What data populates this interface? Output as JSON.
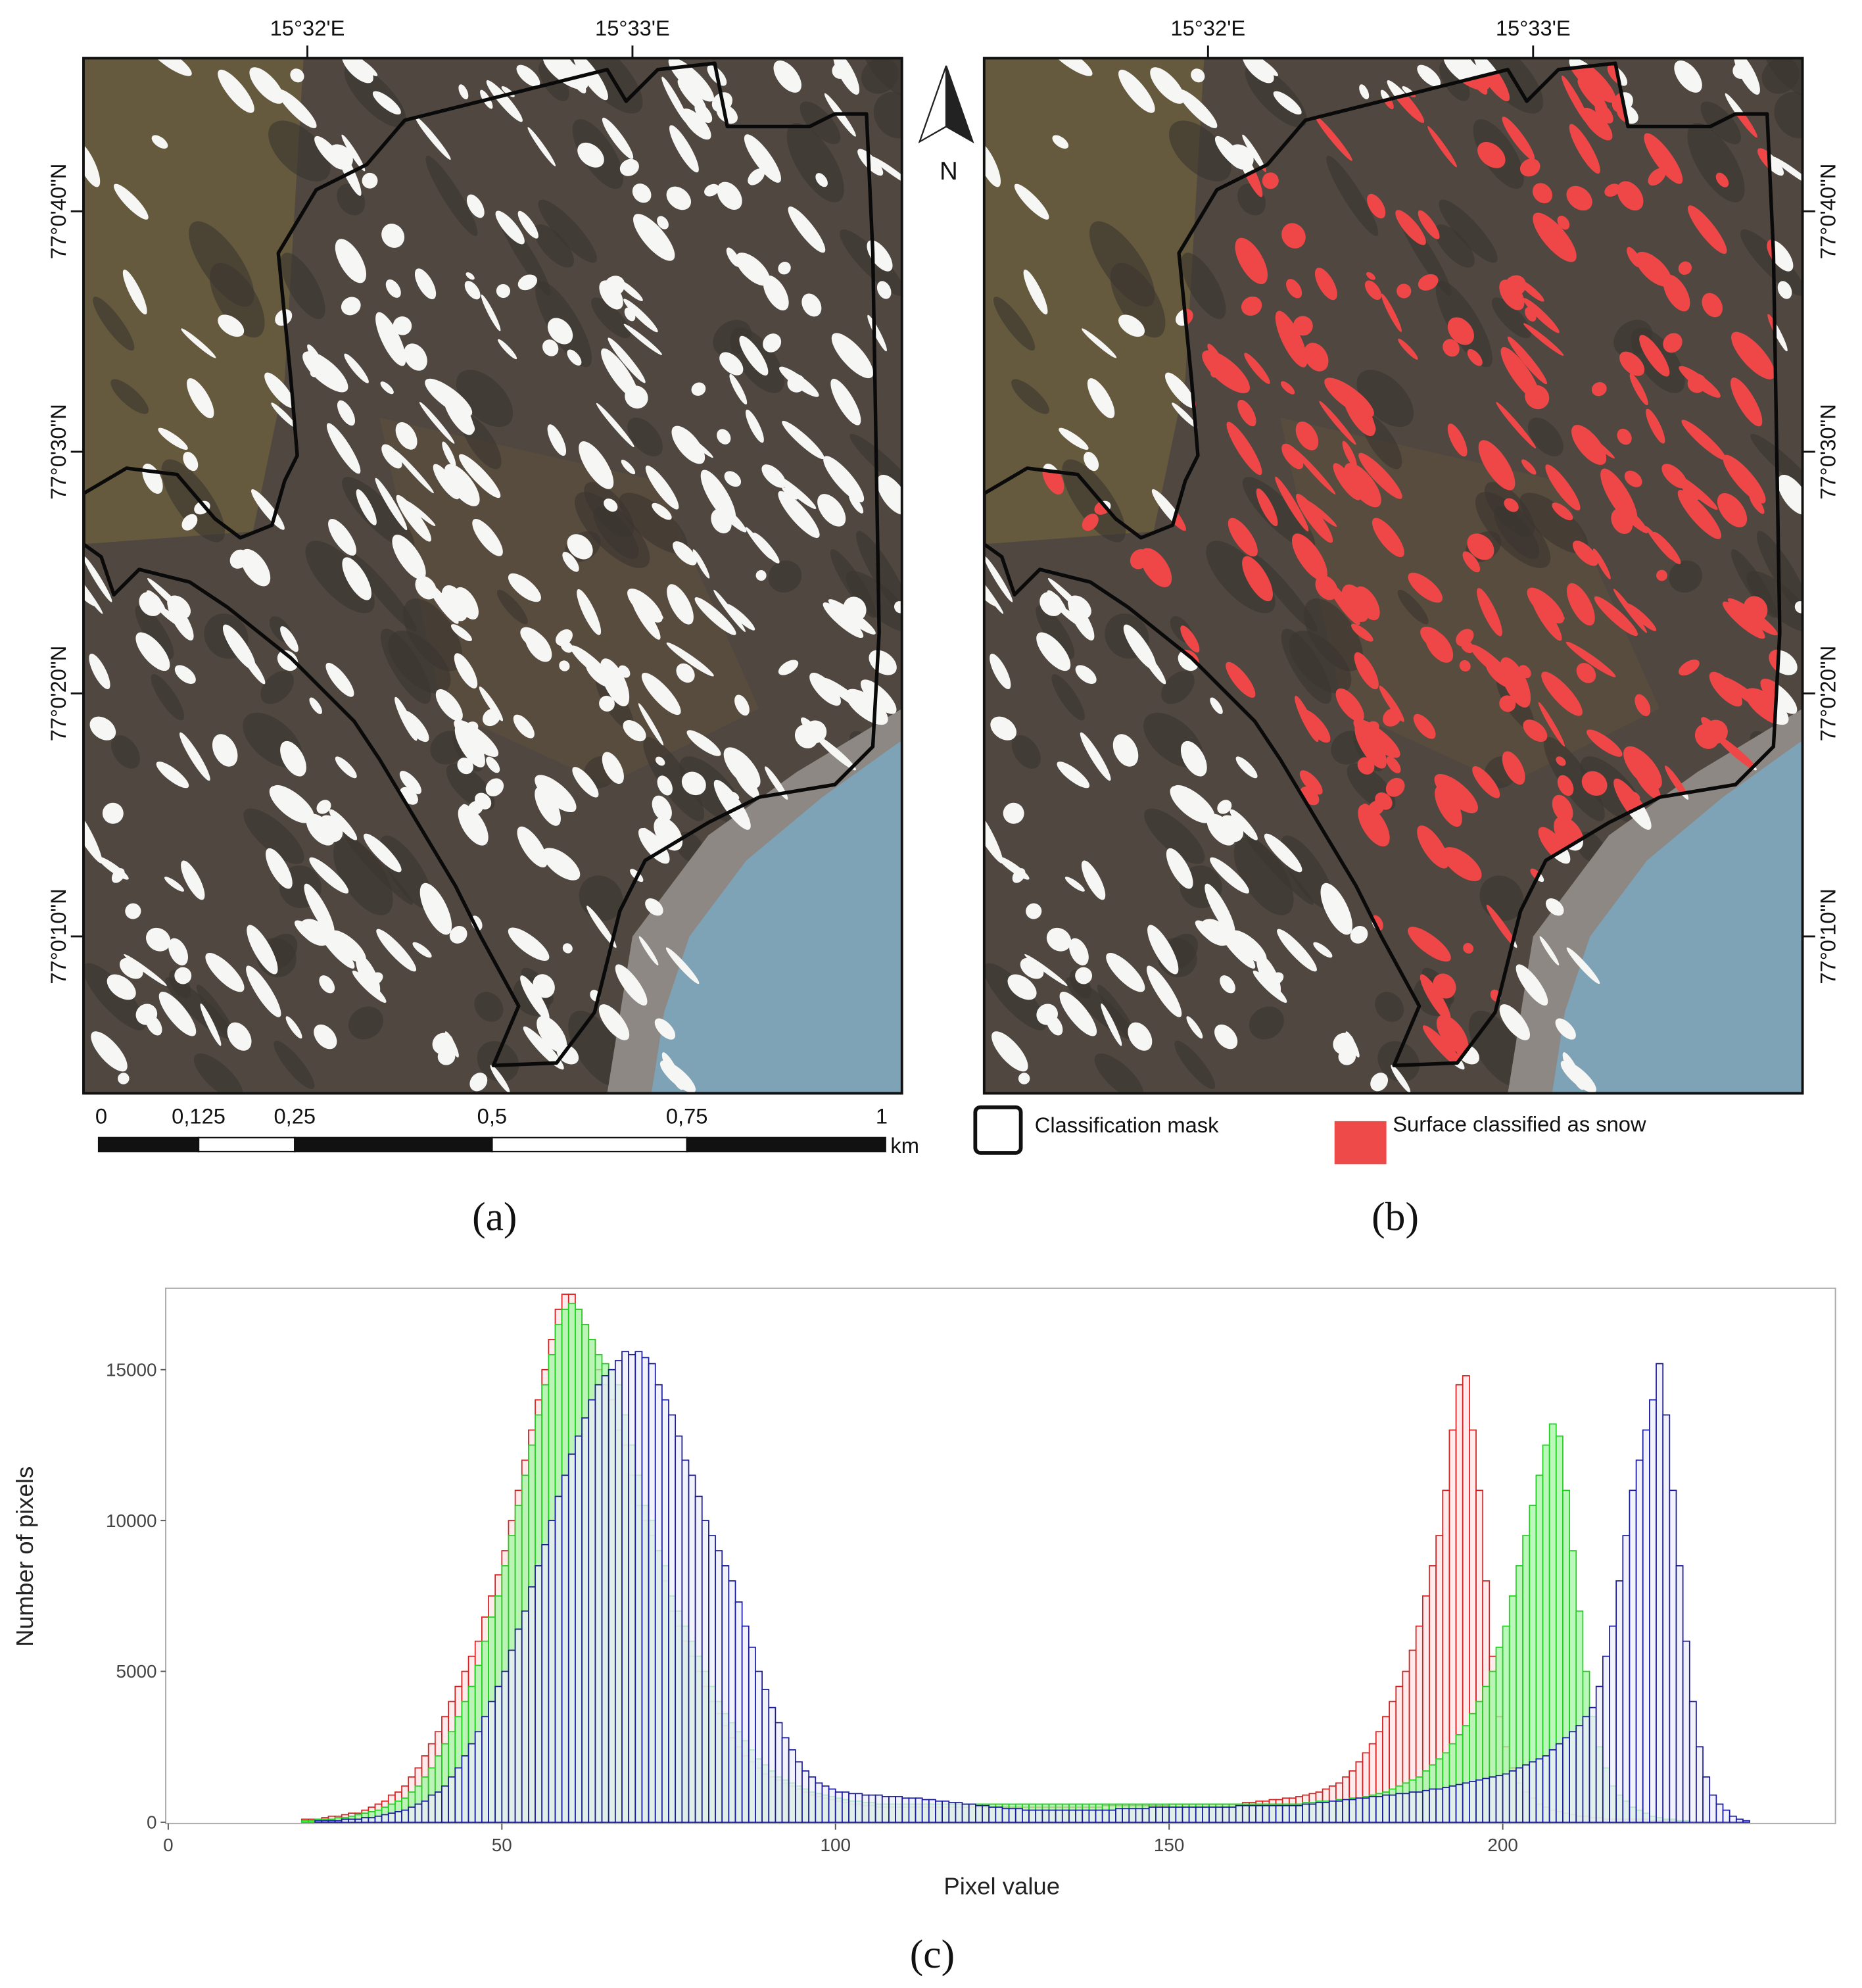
{
  "maps": {
    "longitude_labels": [
      "15°32'E",
      "15°33'E"
    ],
    "latitude_labels": [
      "77°0'40\"N",
      "77°0'30\"N",
      "77°0'20\"N",
      "77°0'10\"N"
    ],
    "north": "N",
    "scale_bar": {
      "labels": [
        "0",
        "0,125",
        "0,25",
        "0,5",
        "0,75",
        "1"
      ],
      "unit": "km"
    },
    "legend": [
      "Classification mask",
      "Surface classified as snow"
    ],
    "panel_labels": [
      "(a)",
      "(b)"
    ]
  },
  "chart_data": {
    "type": "histogram",
    "panel_label": "(c)",
    "xlabel": "Pixel value",
    "ylabel": "Number of pixels",
    "xlim": [
      0,
      250
    ],
    "ylim": [
      0,
      17700
    ],
    "xticks": [
      0,
      50,
      100,
      150,
      200
    ],
    "yticks": [
      0,
      5000,
      10000,
      15000
    ],
    "bins": [
      20,
      21,
      22,
      23,
      24,
      25,
      26,
      27,
      28,
      29,
      30,
      31,
      32,
      33,
      34,
      35,
      36,
      37,
      38,
      39,
      40,
      41,
      42,
      43,
      44,
      45,
      46,
      47,
      48,
      49,
      50,
      51,
      52,
      53,
      54,
      55,
      56,
      57,
      58,
      59,
      60,
      61,
      62,
      63,
      64,
      65,
      66,
      67,
      68,
      69,
      70,
      71,
      72,
      73,
      74,
      75,
      76,
      77,
      78,
      79,
      80,
      81,
      82,
      83,
      84,
      85,
      86,
      87,
      88,
      89,
      90,
      91,
      92,
      93,
      94,
      95,
      96,
      97,
      98,
      99,
      100,
      101,
      102,
      103,
      104,
      105,
      106,
      107,
      108,
      109,
      110,
      111,
      112,
      113,
      114,
      115,
      116,
      117,
      118,
      119,
      120,
      121,
      122,
      123,
      124,
      125,
      126,
      127,
      128,
      129,
      130,
      131,
      132,
      133,
      134,
      135,
      136,
      137,
      138,
      139,
      140,
      141,
      142,
      143,
      144,
      145,
      146,
      147,
      148,
      149,
      150,
      151,
      152,
      153,
      154,
      155,
      156,
      157,
      158,
      159,
      160,
      161,
      162,
      163,
      164,
      165,
      166,
      167,
      168,
      169,
      170,
      171,
      172,
      173,
      174,
      175,
      176,
      177,
      178,
      179,
      180,
      181,
      182,
      183,
      184,
      185,
      186,
      187,
      188,
      189,
      190,
      191,
      192,
      193,
      194,
      195,
      196,
      197,
      198,
      199,
      200,
      201,
      202,
      203,
      204,
      205,
      206,
      207,
      208,
      209,
      210,
      211,
      212,
      213,
      214,
      215,
      216,
      217,
      218,
      219,
      220,
      221,
      222,
      223,
      224,
      225,
      226,
      227,
      228,
      229,
      230,
      231,
      232,
      233,
      234,
      235,
      236,
      237,
      238
    ],
    "series": [
      {
        "color": "#d42020",
        "fill": "#ffe4e4",
        "values": [
          100,
          100,
          100,
          150,
          200,
          200,
          250,
          300,
          300,
          400,
          500,
          600,
          700,
          900,
          1000,
          1200,
          1500,
          1800,
          2200,
          2600,
          3000,
          3500,
          4000,
          4500,
          5000,
          5500,
          6000,
          6800,
          7500,
          8200,
          9000,
          10000,
          11000,
          12000,
          13000,
          14000,
          15000,
          16000,
          17000,
          17500,
          17500,
          17000,
          16500,
          16000,
          15000,
          14500,
          14000,
          13000,
          12500,
          11500,
          10500,
          10000,
          9500,
          9000,
          8000,
          7000,
          6500,
          6000,
          5500,
          5000,
          4500,
          4000,
          3600,
          3200,
          2800,
          2500,
          2200,
          2000,
          1800,
          1600,
          1500,
          1400,
          1300,
          1200,
          1100,
          1000,
          900,
          850,
          800,
          750,
          700,
          650,
          600,
          600,
          550,
          550,
          500,
          500,
          500,
          500,
          500,
          500,
          500,
          500,
          500,
          500,
          500,
          500,
          500,
          500,
          500,
          500,
          500,
          500,
          500,
          500,
          500,
          500,
          500,
          500,
          500,
          500,
          500,
          500,
          500,
          500,
          500,
          500,
          500,
          500,
          550,
          550,
          550,
          550,
          550,
          550,
          550,
          550,
          550,
          550,
          600,
          600,
          600,
          600,
          600,
          600,
          600,
          600,
          600,
          600,
          600,
          650,
          650,
          700,
          700,
          750,
          750,
          800,
          800,
          850,
          900,
          950,
          1000,
          1100,
          1200,
          1300,
          1500,
          1700,
          2000,
          2300,
          2600,
          3000,
          3500,
          4000,
          4500,
          5000,
          5700,
          6500,
          7500,
          8500,
          9500,
          11000,
          13000,
          14500,
          14800,
          13000,
          11000,
          8000,
          5500,
          3500,
          2500,
          1800,
          1300,
          1000,
          800,
          600,
          500,
          400,
          350,
          300,
          250,
          200,
          200,
          150,
          150,
          100,
          100,
          100,
          100,
          100,
          100,
          100,
          50,
          50,
          50,
          50,
          0,
          0,
          0,
          0,
          0,
          0,
          0,
          0,
          0,
          0,
          0,
          0
        ]
      },
      {
        "color": "#1fd01f",
        "fill": "#a6f5a6",
        "values": [
          50,
          50,
          100,
          100,
          100,
          150,
          150,
          200,
          250,
          300,
          350,
          400,
          500,
          600,
          700,
          800,
          1000,
          1200,
          1500,
          1800,
          2200,
          2600,
          3000,
          3500,
          4000,
          4500,
          5200,
          6000,
          6800,
          7500,
          8500,
          9500,
          10500,
          11500,
          12500,
          13500,
          14500,
          15500,
          16500,
          17000,
          17200,
          17000,
          16500,
          16000,
          15500,
          15200,
          15000,
          14500,
          13500,
          12500,
          11500,
          10500,
          10000,
          9000,
          8500,
          7500,
          7000,
          6500,
          6000,
          5500,
          5000,
          4500,
          4000,
          3600,
          3300,
          3000,
          2700,
          2400,
          2100,
          1900,
          1700,
          1500,
          1400,
          1300,
          1200,
          1100,
          1000,
          950,
          900,
          850,
          800,
          750,
          700,
          700,
          650,
          650,
          600,
          600,
          600,
          600,
          600,
          600,
          600,
          600,
          600,
          600,
          600,
          600,
          600,
          600,
          600,
          600,
          600,
          600,
          600,
          600,
          600,
          600,
          600,
          600,
          600,
          600,
          600,
          600,
          600,
          600,
          600,
          600,
          600,
          600,
          600,
          600,
          600,
          600,
          600,
          600,
          600,
          600,
          600,
          600,
          600,
          600,
          600,
          600,
          600,
          600,
          600,
          600,
          600,
          600,
          600,
          600,
          600,
          600,
          600,
          600,
          600,
          600,
          600,
          600,
          650,
          650,
          700,
          700,
          700,
          750,
          750,
          800,
          800,
          850,
          900,
          950,
          1000,
          1100,
          1200,
          1300,
          1400,
          1500,
          1700,
          1900,
          2100,
          2300,
          2600,
          2900,
          3200,
          3600,
          4000,
          4500,
          5000,
          5800,
          6500,
          7500,
          8500,
          9500,
          10500,
          11500,
          12500,
          13200,
          12800,
          11000,
          9000,
          7000,
          5000,
          3500,
          2500,
          1800,
          1200,
          900,
          700,
          500,
          400,
          300,
          200,
          150,
          100,
          100,
          50,
          50,
          0,
          0,
          0,
          0,
          0,
          0,
          0,
          0,
          0,
          0
        ]
      },
      {
        "color": "#1a1a9c",
        "fill": "#eeeefa",
        "values": [
          0,
          0,
          50,
          50,
          50,
          50,
          100,
          100,
          100,
          150,
          150,
          200,
          250,
          300,
          350,
          400,
          500,
          600,
          700,
          900,
          1000,
          1200,
          1500,
          1800,
          2200,
          2600,
          3000,
          3500,
          4000,
          4500,
          5000,
          5700,
          6400,
          7000,
          7800,
          8500,
          9200,
          10000,
          10800,
          11500,
          12200,
          12800,
          13400,
          14000,
          14500,
          14800,
          15000,
          15300,
          15600,
          15500,
          15600,
          15400,
          15200,
          14500,
          14000,
          13500,
          12800,
          12000,
          11500,
          10800,
          10000,
          9500,
          9000,
          8500,
          8000,
          7300,
          6500,
          5800,
          5000,
          4400,
          3800,
          3300,
          2800,
          2400,
          2000,
          1700,
          1500,
          1300,
          1200,
          1100,
          1000,
          1000,
          950,
          950,
          900,
          900,
          900,
          850,
          850,
          850,
          800,
          800,
          800,
          750,
          750,
          700,
          700,
          650,
          650,
          600,
          600,
          550,
          550,
          500,
          500,
          450,
          450,
          450,
          400,
          400,
          400,
          400,
          400,
          400,
          400,
          400,
          400,
          400,
          400,
          400,
          400,
          400,
          450,
          450,
          450,
          450,
          450,
          500,
          500,
          500,
          500,
          500,
          500,
          500,
          500,
          500,
          500,
          500,
          500,
          500,
          550,
          550,
          550,
          550,
          550,
          550,
          550,
          550,
          550,
          550,
          600,
          600,
          650,
          650,
          700,
          700,
          750,
          750,
          800,
          800,
          850,
          850,
          900,
          900,
          950,
          950,
          1000,
          1000,
          1050,
          1100,
          1100,
          1150,
          1200,
          1250,
          1300,
          1350,
          1400,
          1450,
          1500,
          1550,
          1600,
          1700,
          1800,
          1900,
          2000,
          2100,
          2200,
          2400,
          2600,
          2800,
          3000,
          3200,
          3500,
          3800,
          4500,
          5500,
          6500,
          8000,
          9500,
          11000,
          12000,
          13000,
          14000,
          15200,
          13500,
          11000,
          8500,
          6000,
          4000,
          2500,
          1500,
          900,
          600,
          400,
          200,
          100,
          50,
          0
        ]
      }
    ]
  }
}
